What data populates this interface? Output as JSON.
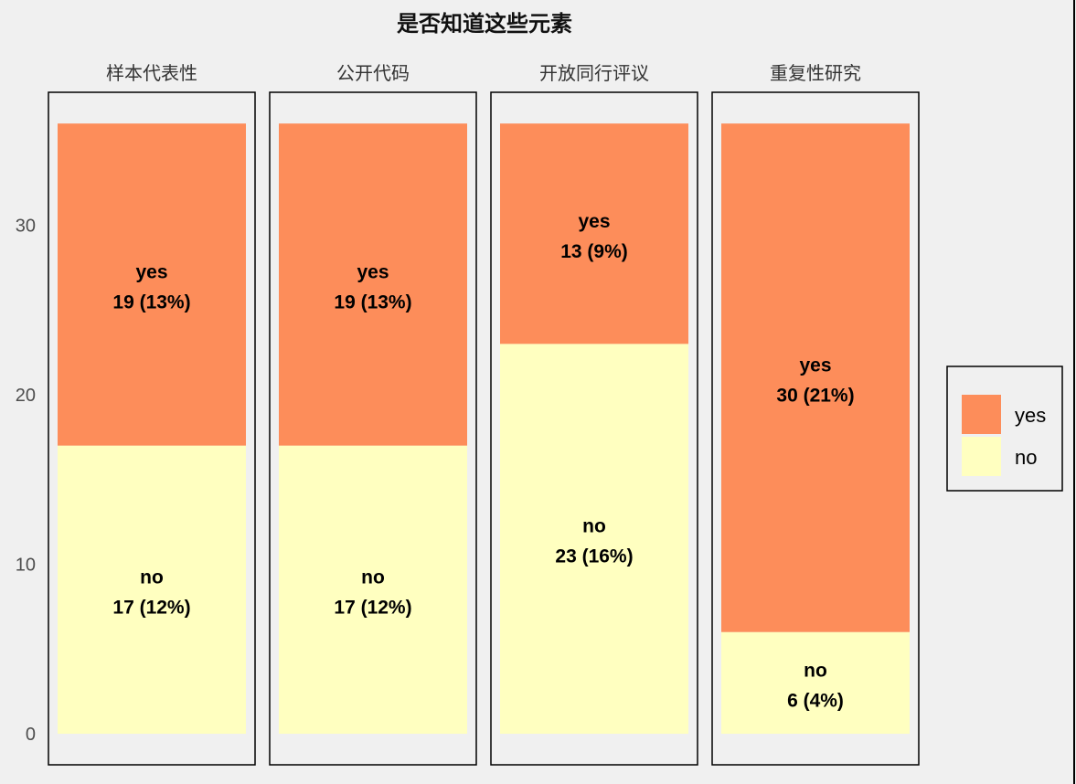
{
  "chart_data": {
    "type": "bar",
    "stacked": true,
    "faceted": true,
    "title": "是否知道这些元素",
    "categories": [
      "样本代表性",
      "公开代码",
      "开放同行评议",
      "重复性研究"
    ],
    "series": [
      {
        "name": "no",
        "values": [
          17,
          17,
          23,
          6
        ],
        "labels": [
          "17 (12%)",
          "17 (12%)",
          "23 (16%)",
          "6 (4%)"
        ],
        "color": "#ffffc0"
      },
      {
        "name": "yes",
        "values": [
          19,
          19,
          13,
          30
        ],
        "labels": [
          "19 (13%)",
          "19 (13%)",
          "13 (9%)",
          "30 (21%)"
        ],
        "color": "#fd8d5a"
      }
    ],
    "yticks": [
      0,
      10,
      20,
      30
    ],
    "ylim": [
      0,
      36
    ],
    "legend": {
      "position": "right",
      "entries": [
        "yes",
        "no"
      ]
    },
    "grid": false,
    "colors": {
      "background": "#f0f0f0",
      "yes": "#fd8d5a",
      "no": "#ffffc0"
    }
  }
}
